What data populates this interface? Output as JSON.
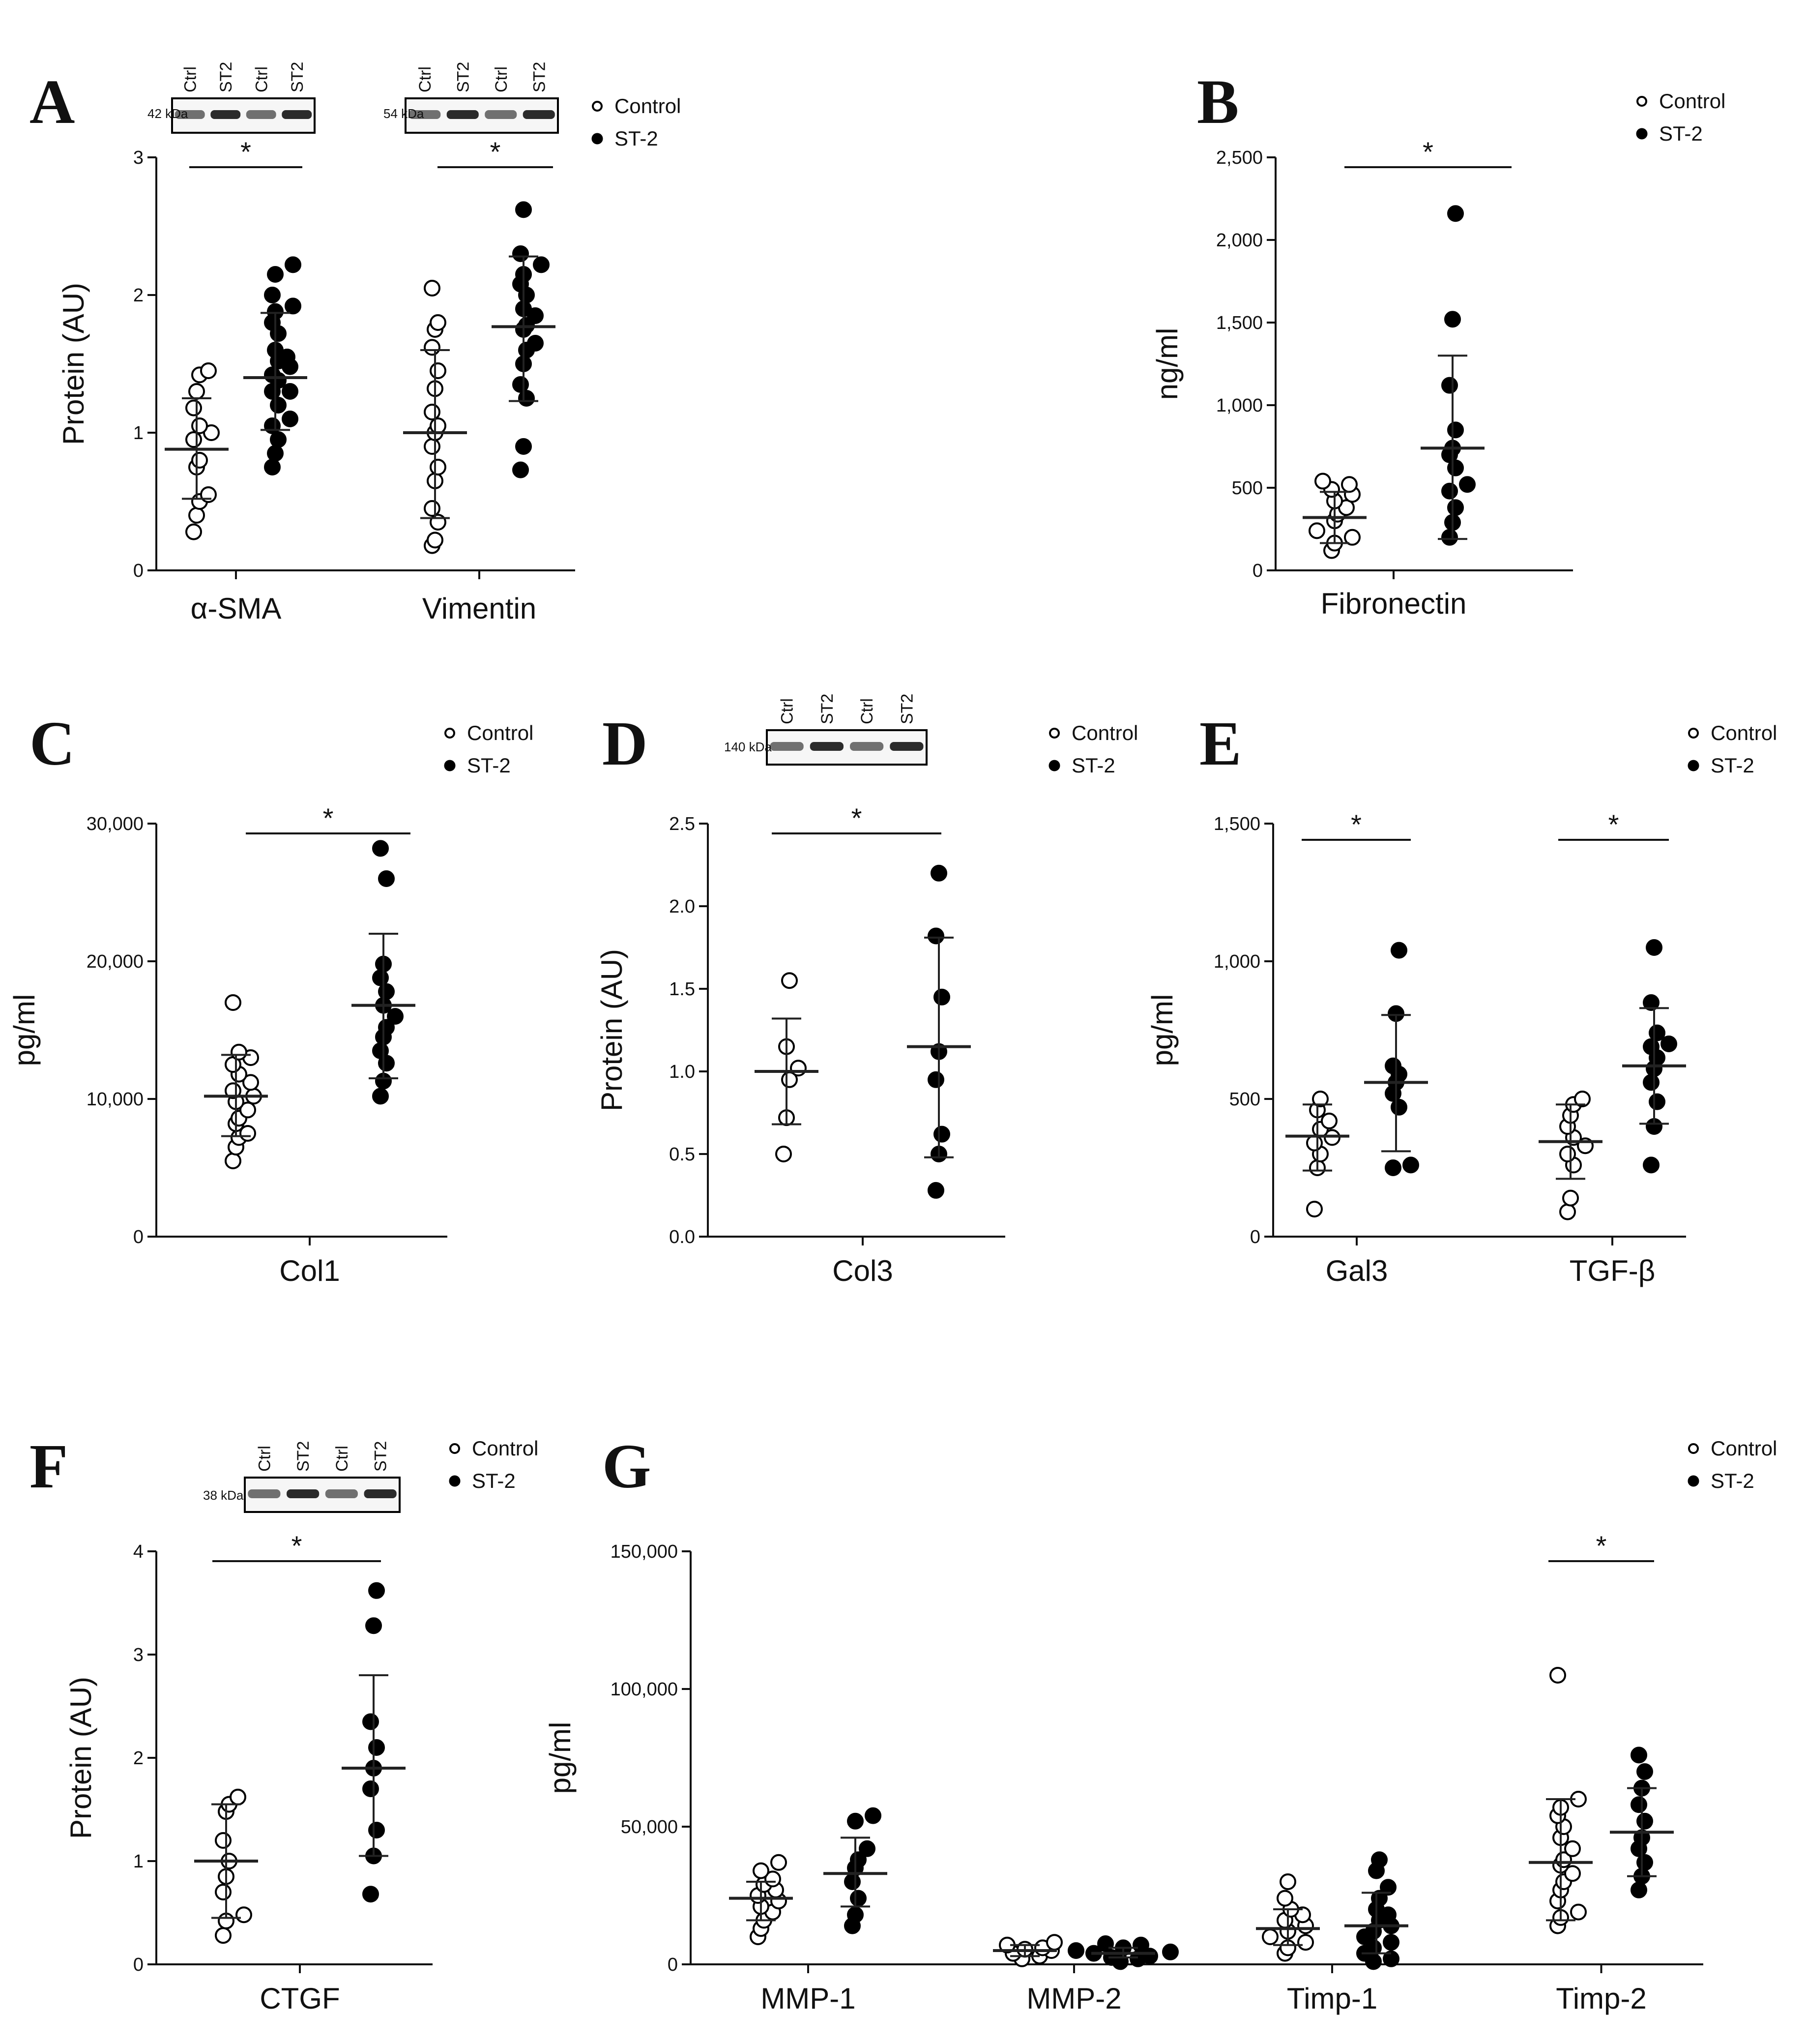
{
  "legend": {
    "control": "Control",
    "st2": "ST-2"
  },
  "chart_data": [
    {
      "panel": "A",
      "type": "scatter",
      "ylabel": "Protein (AU)",
      "ylim": [
        0,
        3
      ],
      "yticks": [
        "0",
        "1",
        "2",
        "3"
      ],
      "categories": [
        "α-SMA",
        "Vimentin"
      ],
      "blots": [
        {
          "kda": "42 kDa",
          "lanes": [
            "Ctrl",
            "ST2",
            "Ctrl",
            "ST2"
          ]
        },
        {
          "kda": "54 kDa",
          "lanes": [
            "Ctrl",
            "ST2",
            "Ctrl",
            "ST2"
          ]
        }
      ],
      "significance": [
        "*",
        "*"
      ],
      "series": [
        {
          "name": "Control",
          "group": 0,
          "mean": 0.88,
          "sd_low": 0.52,
          "sd_high": 1.25,
          "values": [
            0.28,
            0.4,
            0.5,
            0.55,
            0.75,
            0.8,
            0.95,
            1.0,
            1.05,
            1.18,
            1.3,
            1.42,
            1.45
          ]
        },
        {
          "name": "ST-2",
          "group": 0,
          "mean": 1.4,
          "sd_low": 1.02,
          "sd_high": 1.87,
          "values": [
            0.75,
            0.85,
            0.95,
            1.05,
            1.1,
            1.2,
            1.3,
            1.3,
            1.38,
            1.42,
            1.48,
            1.52,
            1.55,
            1.6,
            1.72,
            1.8,
            1.88,
            1.92,
            2.0,
            2.15,
            2.22
          ]
        },
        {
          "name": "Control",
          "group": 1,
          "mean": 1.0,
          "sd_low": 0.38,
          "sd_high": 1.6,
          "values": [
            0.18,
            0.22,
            0.35,
            0.45,
            0.65,
            0.75,
            0.9,
            1.0,
            1.05,
            1.15,
            1.32,
            1.45,
            1.62,
            1.75,
            1.8,
            2.05
          ]
        },
        {
          "name": "ST-2",
          "group": 1,
          "mean": 1.77,
          "sd_low": 1.23,
          "sd_high": 2.28,
          "values": [
            0.73,
            0.9,
            1.25,
            1.35,
            1.5,
            1.6,
            1.65,
            1.75,
            1.78,
            1.85,
            1.9,
            2.0,
            2.08,
            2.15,
            2.22,
            2.3,
            2.62
          ]
        }
      ]
    },
    {
      "panel": "B",
      "type": "scatter",
      "ylabel": "ng/ml",
      "ylim": [
        0,
        2500
      ],
      "yticks": [
        "0",
        "500",
        "1,000",
        "1,500",
        "2,000",
        "2,500"
      ],
      "categories": [
        "Fibronectin"
      ],
      "significance": [
        "*"
      ],
      "series": [
        {
          "name": "Control",
          "group": 0,
          "mean": 320,
          "sd_low": 165,
          "sd_high": 475,
          "values": [
            120,
            165,
            200,
            240,
            300,
            340,
            380,
            420,
            460,
            490,
            520,
            540
          ]
        },
        {
          "name": "ST-2",
          "group": 0,
          "mean": 740,
          "sd_low": 190,
          "sd_high": 1300,
          "values": [
            200,
            290,
            380,
            480,
            520,
            620,
            700,
            740,
            850,
            1120,
            1520,
            2160
          ]
        }
      ]
    },
    {
      "panel": "C",
      "type": "scatter",
      "ylabel": "pg/ml",
      "ylim": [
        0,
        30000
      ],
      "yticks": [
        "0",
        "10,000",
        "20,000",
        "30,000"
      ],
      "categories": [
        "Col1"
      ],
      "significance": [
        "*"
      ],
      "series": [
        {
          "name": "Control",
          "group": 0,
          "mean": 10200,
          "sd_low": 7300,
          "sd_high": 13200,
          "values": [
            5500,
            6500,
            7200,
            7500,
            8200,
            8600,
            9200,
            9800,
            10200,
            10600,
            11200,
            11800,
            12500,
            13000,
            13400,
            17000
          ]
        },
        {
          "name": "ST-2",
          "group": 0,
          "mean": 16800,
          "sd_low": 11500,
          "sd_high": 22000,
          "values": [
            10200,
            11300,
            12600,
            13500,
            14500,
            15200,
            16000,
            16800,
            17800,
            18800,
            19800,
            26000,
            28200
          ]
        }
      ]
    },
    {
      "panel": "D",
      "type": "scatter",
      "ylabel": "Protein (AU)",
      "ylim": [
        0,
        2.5
      ],
      "yticks": [
        "0.0",
        "0.5",
        "1.0",
        "1.5",
        "2.0",
        "2.5"
      ],
      "categories": [
        "Col3"
      ],
      "significance": [
        "*"
      ],
      "blots": [
        {
          "kda": "140 kDa",
          "lanes": [
            "Ctrl",
            "ST2",
            "Ctrl",
            "ST2"
          ]
        }
      ],
      "series": [
        {
          "name": "Control",
          "group": 0,
          "mean": 1.0,
          "sd_low": 0.68,
          "sd_high": 1.32,
          "values": [
            0.5,
            0.72,
            0.95,
            1.02,
            1.15,
            1.55
          ]
        },
        {
          "name": "ST-2",
          "group": 0,
          "mean": 1.15,
          "sd_low": 0.48,
          "sd_high": 1.81,
          "values": [
            0.28,
            0.5,
            0.62,
            0.95,
            1.12,
            1.45,
            1.82,
            2.2
          ]
        }
      ]
    },
    {
      "panel": "E",
      "type": "scatter",
      "ylabel": "pg/ml",
      "ylim": [
        0,
        1500
      ],
      "yticks": [
        "0",
        "500",
        "1,000",
        "1,500"
      ],
      "categories": [
        "Gal3",
        "TGF-β"
      ],
      "significance": [
        "*",
        "*"
      ],
      "series": [
        {
          "name": "Control",
          "group": 0,
          "mean": 365,
          "sd_low": 240,
          "sd_high": 480,
          "values": [
            100,
            250,
            300,
            340,
            360,
            390,
            420,
            460,
            500
          ]
        },
        {
          "name": "ST-2",
          "group": 0,
          "mean": 560,
          "sd_low": 310,
          "sd_high": 805,
          "values": [
            250,
            260,
            470,
            520,
            560,
            590,
            620,
            810,
            1040
          ]
        },
        {
          "name": "Control",
          "group": 1,
          "mean": 345,
          "sd_low": 210,
          "sd_high": 480,
          "values": [
            90,
            140,
            260,
            300,
            330,
            360,
            400,
            440,
            480,
            500
          ]
        },
        {
          "name": "ST-2",
          "group": 1,
          "mean": 620,
          "sd_low": 410,
          "sd_high": 830,
          "values": [
            260,
            400,
            490,
            560,
            610,
            650,
            690,
            700,
            740,
            850,
            1050
          ]
        }
      ]
    },
    {
      "panel": "F",
      "type": "scatter",
      "ylabel": "Protein (AU)",
      "ylim": [
        0,
        4
      ],
      "yticks": [
        "0",
        "1",
        "2",
        "3",
        "4"
      ],
      "categories": [
        "CTGF"
      ],
      "significance": [
        "*"
      ],
      "blots": [
        {
          "kda": "38 kDa",
          "lanes": [
            "Ctrl",
            "ST2",
            "Ctrl",
            "ST2"
          ]
        }
      ],
      "series": [
        {
          "name": "Control",
          "group": 0,
          "mean": 1.0,
          "sd_low": 0.45,
          "sd_high": 1.55,
          "values": [
            0.28,
            0.42,
            0.48,
            0.7,
            0.85,
            1.0,
            1.2,
            1.48,
            1.55,
            1.62
          ]
        },
        {
          "name": "ST-2",
          "group": 0,
          "mean": 1.9,
          "sd_low": 1.05,
          "sd_high": 2.8,
          "values": [
            0.68,
            1.05,
            1.3,
            1.7,
            1.9,
            2.1,
            2.35,
            3.28,
            3.62
          ]
        }
      ]
    },
    {
      "panel": "G",
      "type": "scatter",
      "ylabel": "pg/ml",
      "ylim": [
        0,
        150000
      ],
      "yticks": [
        "0",
        "50,000",
        "100,000",
        "150,000"
      ],
      "categories": [
        "MMP-1",
        "MMP-2",
        "Timp-1",
        "Timp-2"
      ],
      "significance": [
        "",
        "",
        "",
        "*"
      ],
      "series": [
        {
          "name": "Control",
          "group": 0,
          "mean": 24000,
          "sd_low": 16000,
          "sd_high": 30000,
          "values": [
            10000,
            13000,
            16000,
            19000,
            21000,
            23000,
            25000,
            27000,
            29000,
            31000,
            34000,
            37000
          ]
        },
        {
          "name": "ST-2",
          "group": 0,
          "mean": 33000,
          "sd_low": 21000,
          "sd_high": 46000,
          "values": [
            14000,
            18000,
            24000,
            30000,
            35000,
            38000,
            42000,
            52000,
            54000
          ]
        },
        {
          "name": "Control",
          "group": 1,
          "mean": 5000,
          "sd_low": 3000,
          "sd_high": 7000,
          "values": [
            2000,
            3000,
            4000,
            5000,
            5500,
            6000,
            7000,
            8000
          ]
        },
        {
          "name": "ST-2",
          "group": 1,
          "mean": 4000,
          "sd_low": 2500,
          "sd_high": 6000,
          "values": [
            1000,
            2000,
            2500,
            3000,
            4000,
            4500,
            5000,
            6000,
            7000,
            7500
          ]
        },
        {
          "name": "Control",
          "group": 2,
          "mean": 13000,
          "sd_low": 7000,
          "sd_high": 20000,
          "values": [
            4000,
            6000,
            8000,
            10000,
            12000,
            14000,
            16000,
            18000,
            20000,
            24000,
            30000
          ]
        },
        {
          "name": "ST-2",
          "group": 2,
          "mean": 14000,
          "sd_low": 4000,
          "sd_high": 26000,
          "values": [
            1000,
            2000,
            4000,
            6000,
            8000,
            10000,
            12000,
            14000,
            16000,
            18000,
            20000,
            24000,
            28000,
            34000,
            38000
          ]
        },
        {
          "name": "Control",
          "group": 3,
          "mean": 37000,
          "sd_low": 16000,
          "sd_high": 60000,
          "values": [
            14000,
            17000,
            19000,
            23000,
            27000,
            30000,
            33000,
            36000,
            38000,
            42000,
            46000,
            50000,
            54000,
            57000,
            60000,
            105000
          ]
        },
        {
          "name": "ST-2",
          "group": 3,
          "mean": 48000,
          "sd_low": 32000,
          "sd_high": 64000,
          "values": [
            27000,
            32000,
            37000,
            42000,
            46000,
            52000,
            58000,
            64000,
            70000,
            76000
          ]
        }
      ]
    }
  ]
}
